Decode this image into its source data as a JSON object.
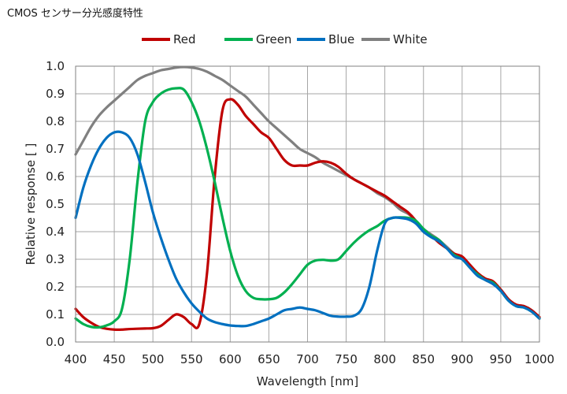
{
  "chart_data": {
    "type": "line",
    "title": "CMOS センサー分光感度特性",
    "xlabel": "Wavelength [nm]",
    "ylabel": "Relative response [ ]",
    "xlim": [
      400,
      1000
    ],
    "ylim": [
      0,
      1.0
    ],
    "xticks": [
      400,
      450,
      500,
      550,
      600,
      650,
      700,
      750,
      800,
      850,
      900,
      950,
      1000
    ],
    "yticks": [
      0.0,
      0.1,
      0.2,
      0.3,
      0.4,
      0.5,
      0.6,
      0.7,
      0.8,
      0.9,
      1.0
    ],
    "ytick_labels": [
      "0.0",
      "0.1",
      "0.2",
      "0.3",
      "0.4",
      "0.5",
      "0.6",
      "0.7",
      "0.8",
      "0.9",
      "1.0"
    ],
    "grid": true,
    "legend_position": "top",
    "series": [
      {
        "name": "Red",
        "color": "#c00000",
        "x": [
          400,
          410,
          420,
          430,
          440,
          450,
          460,
          470,
          480,
          490,
          500,
          510,
          520,
          530,
          540,
          550,
          560,
          570,
          580,
          590,
          600,
          610,
          620,
          630,
          640,
          650,
          660,
          670,
          680,
          690,
          700,
          710,
          720,
          730,
          740,
          750,
          760,
          770,
          780,
          790,
          800,
          810,
          820,
          830,
          840,
          850,
          860,
          870,
          880,
          890,
          900,
          910,
          920,
          930,
          940,
          950,
          960,
          970,
          980,
          990,
          1000
        ],
        "y": [
          0.12,
          0.09,
          0.07,
          0.055,
          0.048,
          0.045,
          0.045,
          0.047,
          0.048,
          0.049,
          0.05,
          0.058,
          0.08,
          0.1,
          0.09,
          0.065,
          0.065,
          0.25,
          0.6,
          0.84,
          0.88,
          0.86,
          0.82,
          0.79,
          0.76,
          0.74,
          0.7,
          0.66,
          0.64,
          0.64,
          0.64,
          0.65,
          0.655,
          0.65,
          0.635,
          0.61,
          0.59,
          0.575,
          0.56,
          0.545,
          0.53,
          0.51,
          0.49,
          0.47,
          0.44,
          0.4,
          0.385,
          0.36,
          0.34,
          0.32,
          0.31,
          0.28,
          0.25,
          0.23,
          0.22,
          0.19,
          0.155,
          0.135,
          0.13,
          0.115,
          0.09
        ]
      },
      {
        "name": "Green",
        "color": "#00b050",
        "x": [
          400,
          410,
          420,
          430,
          440,
          450,
          460,
          470,
          480,
          490,
          500,
          510,
          520,
          530,
          540,
          550,
          560,
          570,
          580,
          590,
          600,
          610,
          620,
          630,
          640,
          650,
          660,
          670,
          680,
          690,
          700,
          710,
          720,
          730,
          740,
          750,
          760,
          770,
          780,
          790,
          800,
          810,
          820,
          830,
          840,
          850,
          860,
          870,
          880,
          890,
          900,
          910,
          920,
          930,
          940,
          950,
          960,
          970,
          980,
          990,
          1000
        ],
        "y": [
          0.085,
          0.065,
          0.055,
          0.053,
          0.06,
          0.075,
          0.12,
          0.3,
          0.58,
          0.8,
          0.87,
          0.9,
          0.915,
          0.92,
          0.915,
          0.87,
          0.8,
          0.7,
          0.58,
          0.45,
          0.33,
          0.24,
          0.185,
          0.16,
          0.155,
          0.155,
          0.16,
          0.18,
          0.21,
          0.245,
          0.28,
          0.295,
          0.298,
          0.295,
          0.3,
          0.33,
          0.36,
          0.385,
          0.405,
          0.42,
          0.44,
          0.45,
          0.452,
          0.45,
          0.44,
          0.41,
          0.385,
          0.37,
          0.34,
          0.315,
          0.3,
          0.27,
          0.245,
          0.225,
          0.215,
          0.185,
          0.15,
          0.13,
          0.125,
          0.11,
          0.085
        ]
      },
      {
        "name": "Blue",
        "color": "#0070c0",
        "x": [
          400,
          410,
          420,
          430,
          440,
          450,
          460,
          470,
          480,
          490,
          500,
          510,
          520,
          530,
          540,
          550,
          560,
          570,
          580,
          590,
          600,
          610,
          620,
          630,
          640,
          650,
          660,
          670,
          680,
          690,
          700,
          710,
          720,
          730,
          740,
          750,
          760,
          770,
          780,
          790,
          800,
          810,
          820,
          830,
          840,
          850,
          860,
          870,
          880,
          890,
          900,
          910,
          920,
          930,
          940,
          950,
          960,
          970,
          980,
          990,
          1000
        ],
        "y": [
          0.45,
          0.56,
          0.64,
          0.7,
          0.74,
          0.76,
          0.76,
          0.74,
          0.68,
          0.58,
          0.47,
          0.38,
          0.3,
          0.23,
          0.18,
          0.14,
          0.11,
          0.085,
          0.072,
          0.065,
          0.06,
          0.058,
          0.058,
          0.065,
          0.075,
          0.085,
          0.1,
          0.115,
          0.12,
          0.125,
          0.12,
          0.115,
          0.105,
          0.095,
          0.092,
          0.092,
          0.095,
          0.12,
          0.2,
          0.33,
          0.43,
          0.45,
          0.45,
          0.445,
          0.43,
          0.4,
          0.38,
          0.365,
          0.34,
          0.31,
          0.3,
          0.27,
          0.24,
          0.225,
          0.21,
          0.185,
          0.15,
          0.13,
          0.125,
          0.11,
          0.085
        ]
      },
      {
        "name": "White",
        "color": "#808080",
        "x": [
          400,
          410,
          420,
          430,
          440,
          450,
          460,
          470,
          480,
          490,
          500,
          510,
          520,
          530,
          540,
          550,
          560,
          570,
          580,
          590,
          600,
          610,
          620,
          630,
          640,
          650,
          660,
          670,
          680,
          690,
          700,
          710,
          720,
          730,
          740,
          750,
          760,
          770,
          780,
          790,
          800,
          810,
          820,
          830,
          840,
          850,
          860,
          870,
          880,
          890,
          900,
          910,
          920,
          930,
          940,
          950,
          960,
          970,
          980,
          990,
          1000
        ],
        "y": [
          0.68,
          0.73,
          0.78,
          0.82,
          0.85,
          0.875,
          0.9,
          0.925,
          0.95,
          0.965,
          0.975,
          0.985,
          0.99,
          0.995,
          0.997,
          0.995,
          0.99,
          0.98,
          0.965,
          0.95,
          0.93,
          0.91,
          0.89,
          0.86,
          0.83,
          0.8,
          0.775,
          0.75,
          0.725,
          0.7,
          0.685,
          0.67,
          0.65,
          0.635,
          0.62,
          0.605,
          0.59,
          0.575,
          0.56,
          0.54,
          0.525,
          0.505,
          0.48,
          0.465,
          0.44,
          0.41,
          0.39,
          0.37,
          0.345,
          0.32,
          0.305,
          0.275,
          0.245,
          0.225,
          0.21,
          0.19,
          0.155,
          0.135,
          0.13,
          0.115,
          0.09
        ]
      }
    ]
  }
}
